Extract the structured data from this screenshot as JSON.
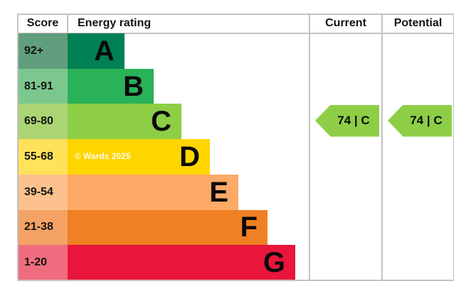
{
  "header": {
    "score": "Score",
    "energy_rating": "Energy rating",
    "current": "Current",
    "potential": "Potential"
  },
  "bands": [
    {
      "score_range": "92+",
      "letter": "A",
      "bar_color": "#008054",
      "cell_color": "#609e7e"
    },
    {
      "score_range": "81-91",
      "letter": "B",
      "bar_color": "#2ab259",
      "cell_color": "#7cc78d"
    },
    {
      "score_range": "69-80",
      "letter": "C",
      "bar_color": "#8dce46",
      "cell_color": "#abd573"
    },
    {
      "score_range": "55-68",
      "letter": "D",
      "bar_color": "#ffd500",
      "cell_color": "#ffe25a"
    },
    {
      "score_range": "39-54",
      "letter": "E",
      "bar_color": "#fcaa65",
      "cell_color": "#fcc18e"
    },
    {
      "score_range": "21-38",
      "letter": "F",
      "bar_color": "#ef8023",
      "cell_color": "#f4a266"
    },
    {
      "score_range": "1-20",
      "letter": "G",
      "bar_color": "#e9153b",
      "cell_color": "#ef6d7e"
    }
  ],
  "current": {
    "label": "74 | C",
    "score": 74,
    "band": "C",
    "arrow_color": "#8dce46"
  },
  "potential": {
    "label": "74 | C",
    "score": 74,
    "band": "C",
    "arrow_color": "#8dce46"
  },
  "watermark": "© Wards 2025",
  "border_color": "#c2c2c2",
  "chart_data": {
    "type": "bar",
    "title": "Energy rating",
    "columns": [
      "Score",
      "Energy rating",
      "Current",
      "Potential"
    ],
    "categories": [
      "A",
      "B",
      "C",
      "D",
      "E",
      "F",
      "G"
    ],
    "score_ranges": [
      "92+",
      "81-91",
      "69-80",
      "55-68",
      "39-54",
      "21-38",
      "1-20"
    ],
    "band_colors": [
      "#008054",
      "#2ab259",
      "#8dce46",
      "#ffd500",
      "#fcaa65",
      "#ef8023",
      "#e9153b"
    ],
    "relative_bar_steps": [
      1,
      2,
      3,
      4,
      5,
      6,
      7
    ],
    "current_rating": {
      "score": 74,
      "band": "C"
    },
    "potential_rating": {
      "score": 74,
      "band": "C"
    },
    "legend_position": "none",
    "grid": false,
    "annotations": [
      "© Wards 2025"
    ]
  }
}
